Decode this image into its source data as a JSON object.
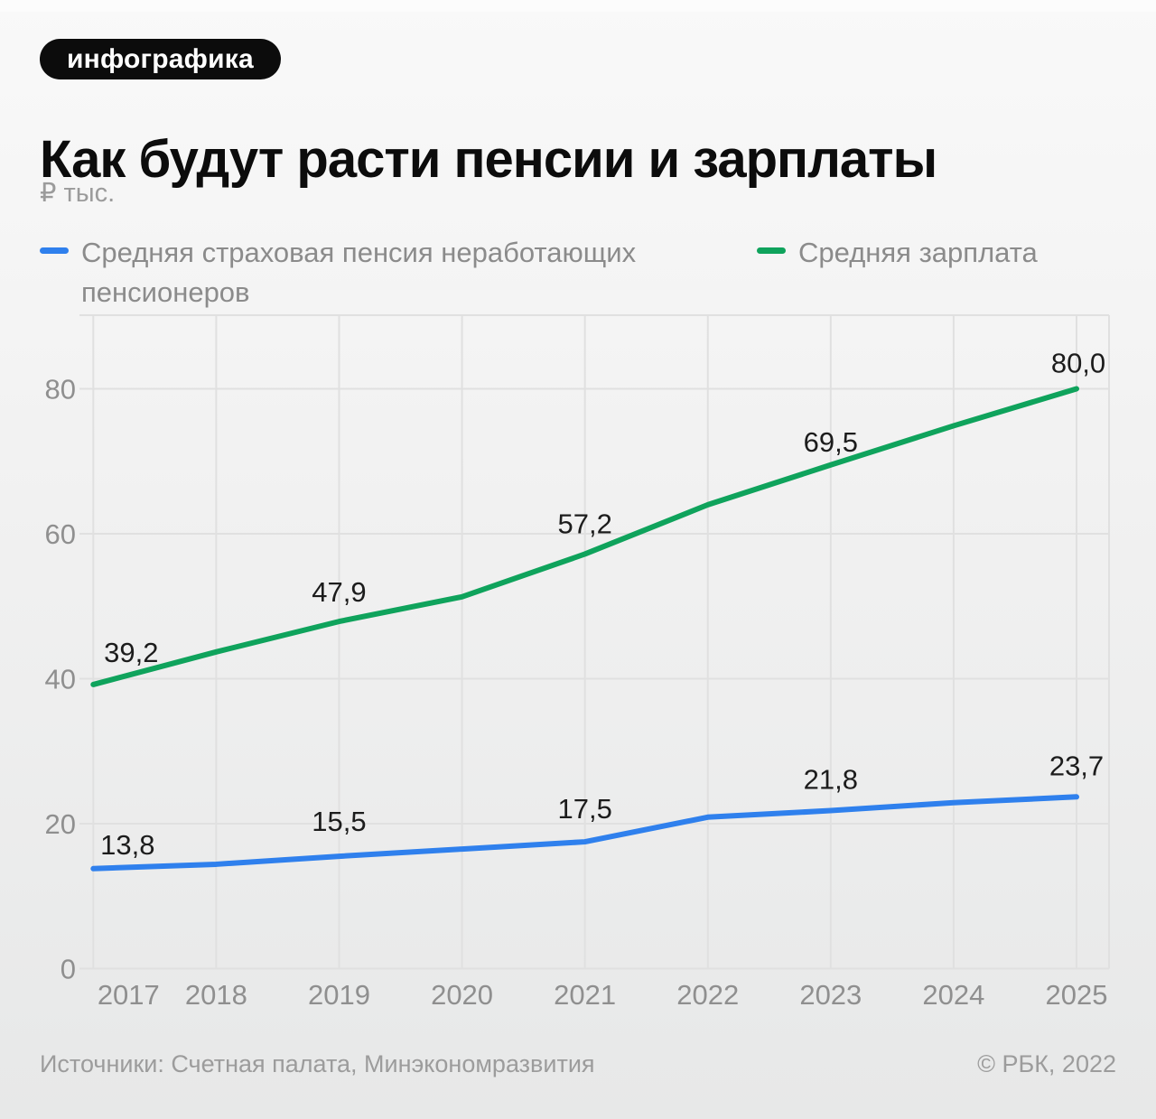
{
  "page": {
    "badge": "инфографика",
    "title": "Как будут расти пенсии и зарплаты",
    "units": "₽ тыс.",
    "footer_sources": "Источники: Счетная палата, Минэкономразвития",
    "footer_copyright": "© РБК, 2022"
  },
  "colors": {
    "background_top": "#f9f9f9",
    "background_bottom": "#e7e8e8",
    "badge_background": "#0c0c0c",
    "badge_text": "#ffffff",
    "title_text": "#0c0c0c",
    "muted_text": "#9b9b9b",
    "axis_text": "#8f8f8f",
    "legend_text": "#8b8b8b",
    "value_label_text": "#1c1c1c",
    "gridline": "#e0e0e0",
    "pension_line": "#2F80ED",
    "salary_line": "#0FA35C"
  },
  "legend": {
    "items": [
      {
        "label": "Средняя страховая пенсия неработающих пенсионеров",
        "lines": [
          "Средняя страховая пенсия неработающих",
          "пенсионеров"
        ],
        "color": "#2F80ED"
      },
      {
        "label": "Средняя зарплата",
        "lines": [
          "Средняя зарплата"
        ],
        "color": "#0FA35C"
      }
    ]
  },
  "chart_data": {
    "type": "line",
    "title": "Как будут расти пенсии и зарплаты",
    "ylabel": "₽ тыс.",
    "x": [
      2017,
      2018,
      2019,
      2020,
      2021,
      2022,
      2023,
      2024,
      2025
    ],
    "x_tick_labels": [
      "2017",
      "2018",
      "2019",
      "2020",
      "2021",
      "2022",
      "2023",
      "2024",
      "2025"
    ],
    "yticks": [
      0,
      20,
      40,
      60,
      80
    ],
    "ytick_labels": [
      "0",
      "20",
      "40",
      "60",
      "80"
    ],
    "ylim": [
      0,
      90
    ],
    "grid": true,
    "legend_position": "top",
    "series": [
      {
        "name": "Средняя страховая пенсия неработающих пенсионеров",
        "color": "#2F80ED",
        "values": [
          13.8,
          14.4,
          15.5,
          16.5,
          17.5,
          20.9,
          21.8,
          22.9,
          23.7
        ],
        "point_labels": [
          "13,8",
          null,
          "15,5",
          null,
          "17,5",
          null,
          "21,8",
          null,
          "23,7"
        ]
      },
      {
        "name": "Средняя зарплата",
        "color": "#0FA35C",
        "values": [
          39.2,
          43.7,
          47.9,
          51.3,
          57.2,
          64.0,
          69.5,
          74.9,
          80.0
        ],
        "point_labels": [
          "39,2",
          null,
          "47,9",
          null,
          "57,2",
          null,
          "69,5",
          null,
          "80,0"
        ]
      }
    ]
  }
}
